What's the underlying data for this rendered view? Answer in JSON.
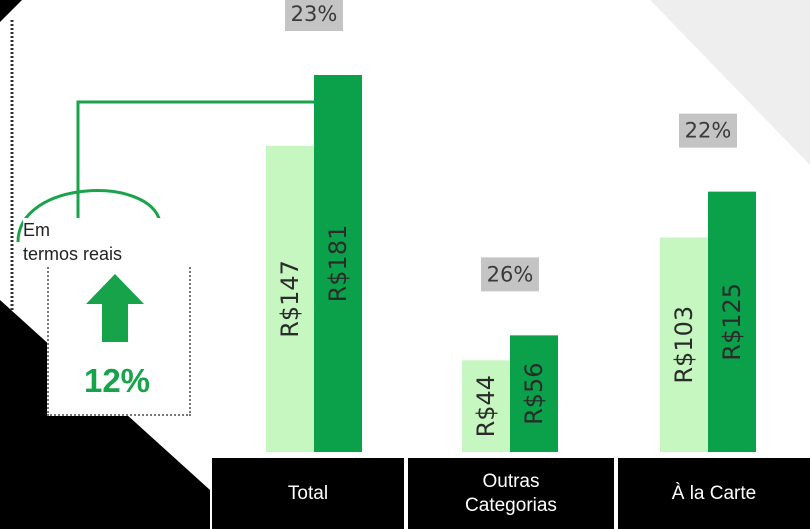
{
  "chart_data": {
    "type": "bar",
    "categories": [
      "Total",
      "Outras\nCategorias",
      "À la Carte"
    ],
    "series": [
      {
        "values": [
          147,
          44,
          103
        ],
        "labels": [
          "R$147",
          "R$44",
          "R$103"
        ]
      },
      {
        "values": [
          181,
          56,
          125
        ],
        "labels": [
          "R$181",
          "R$56",
          "R$125"
        ]
      }
    ],
    "growth_labels": [
      "23%",
      "26%",
      "22%"
    ],
    "ylim": [
      0,
      200
    ],
    "grid": false,
    "colors": {
      "series_1": "#c6f7c0",
      "series_2": "#0aa14a",
      "growth_box": "#c4c4c4",
      "category_band": "#000000"
    }
  },
  "callout": {
    "label_line1": "Em",
    "label_line2": "termos reais",
    "value": "12%",
    "icon": "arrow-up-icon",
    "colors": {
      "accent": "#16a34a",
      "connector": "#1aa34a"
    }
  }
}
